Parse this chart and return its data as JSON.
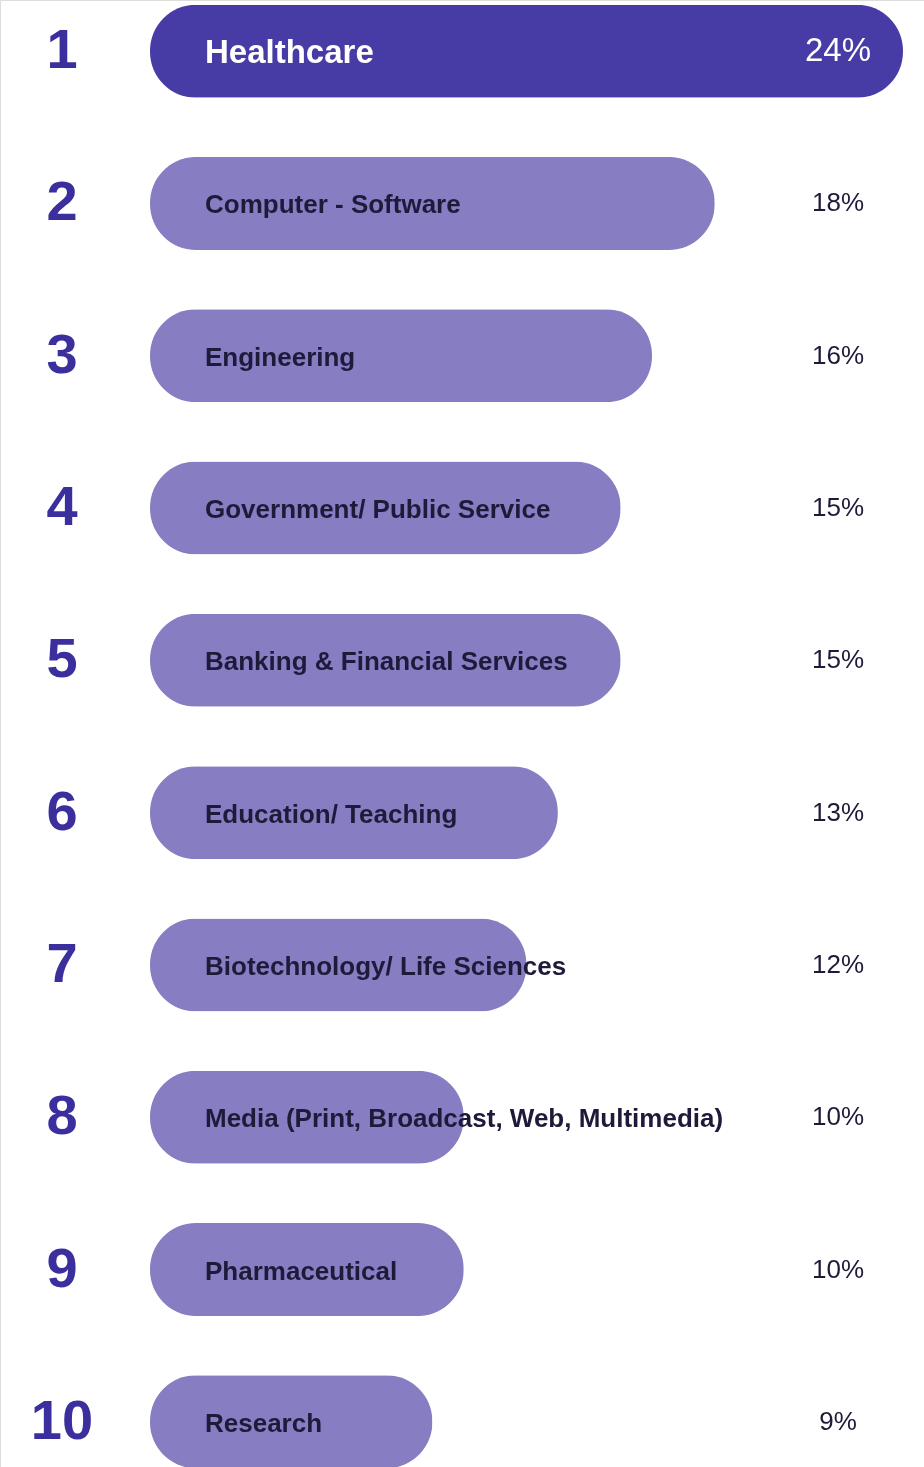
{
  "chart_data": {
    "type": "bar",
    "orientation": "horizontal",
    "categories": [
      "Healthcare",
      "Computer - Software",
      "Engineering",
      "Government/ Public Service",
      "Banking & Financial Services",
      "Education/ Teaching",
      "Biotechnology/ Life Sciences",
      "Media (Print, Broadcast, Web, Multimedia)",
      "Pharmaceutical",
      "Research"
    ],
    "values": [
      24,
      18,
      16,
      15,
      15,
      13,
      12,
      10,
      10,
      9
    ],
    "value_labels": [
      "24%",
      "18%",
      "16%",
      "15%",
      "15%",
      "13%",
      "12%",
      "10%",
      "10%",
      "9%"
    ],
    "colors": [
      "#473ca5",
      "#867dc2",
      "#867dc2",
      "#867dc2",
      "#867dc2",
      "#867dc2",
      "#867dc2",
      "#867dc2",
      "#867dc2",
      "#867dc2"
    ],
    "annotations": [
      "1",
      "2",
      "3",
      "4",
      "5",
      "6",
      "7",
      "8",
      "9",
      "10"
    ]
  }
}
